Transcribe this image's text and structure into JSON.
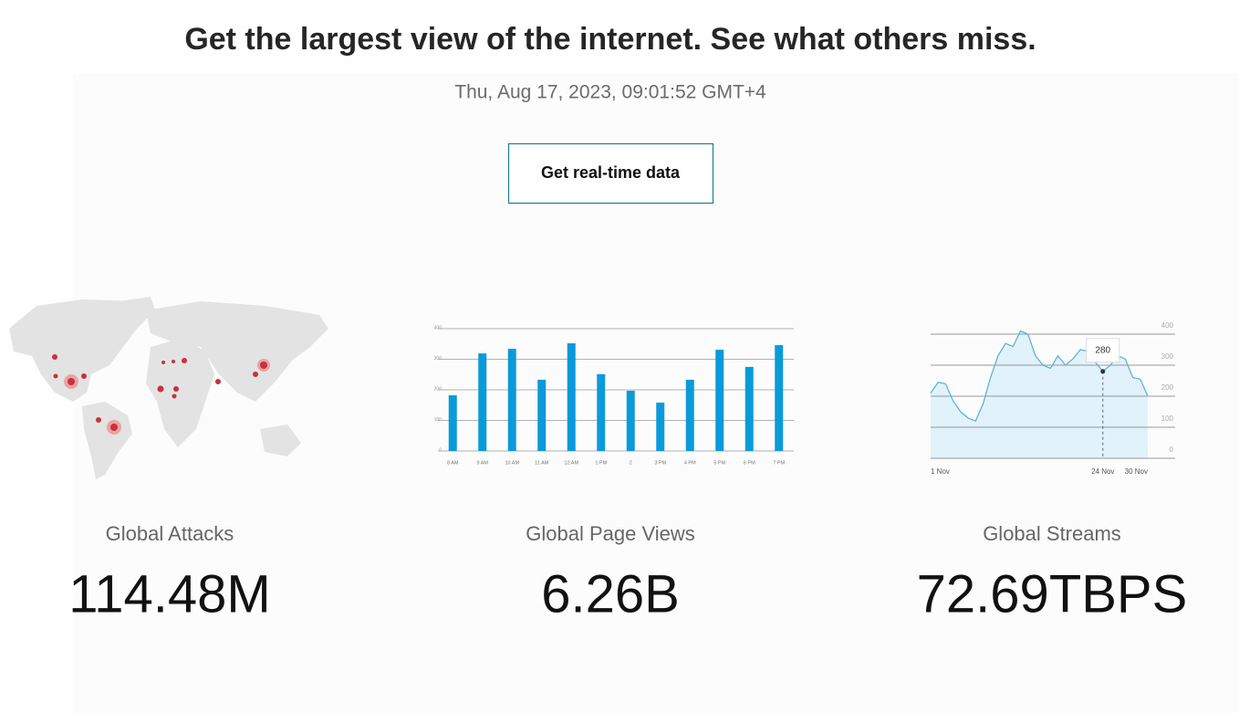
{
  "header": {
    "title": "Get the largest view of the internet. See what others miss.",
    "timestamp": "Thu, Aug 17, 2023, 09:01:52 GMT+4",
    "button": "Get real-time data"
  },
  "stats": [
    {
      "label": "Global Attacks",
      "value": "114.48M"
    },
    {
      "label": "Global Page Views",
      "value": "6.26B"
    },
    {
      "label": "Global Streams",
      "value": "72.69TBPS"
    }
  ],
  "chart_data": [
    {
      "type": "bar",
      "categories": [
        "8 AM",
        "9 AM",
        "10 AM",
        "11 AM",
        "12 AM",
        "1 PM",
        "2",
        "3 PM",
        "4 PM",
        "5 PM",
        "6 PM",
        "7 PM"
      ],
      "values": [
        182,
        319,
        334,
        233,
        352,
        251,
        197,
        158,
        233,
        331,
        275,
        346
      ],
      "color": "#0b9ad9",
      "ylim": [
        0,
        400
      ],
      "yticks": [
        0,
        100,
        200,
        300,
        400
      ],
      "grid": true
    },
    {
      "type": "area",
      "x": [
        1,
        2,
        3,
        4,
        5,
        6,
        7,
        8,
        9,
        10,
        11,
        12,
        13,
        14,
        15,
        16,
        17,
        18,
        19,
        20,
        21,
        22,
        23,
        24,
        25,
        26,
        27,
        28,
        29,
        30
      ],
      "values": [
        210,
        245,
        240,
        185,
        150,
        130,
        120,
        175,
        260,
        330,
        370,
        360,
        410,
        400,
        330,
        300,
        290,
        330,
        300,
        320,
        350,
        345,
        310,
        280,
        300,
        330,
        320,
        260,
        255,
        200
      ],
      "color": "#5ab4dc",
      "xlim": [
        1,
        30
      ],
      "xticks": [
        {
          "value": 1,
          "label": "1 Nov"
        },
        {
          "value": 24,
          "label": "24 Nov"
        },
        {
          "value": 30,
          "label": "30 Nov"
        }
      ],
      "ylim": [
        0,
        400
      ],
      "yticks": [
        0,
        100,
        200,
        300,
        400
      ],
      "grid": true,
      "highlight": {
        "x": 24,
        "value": 280
      }
    }
  ]
}
